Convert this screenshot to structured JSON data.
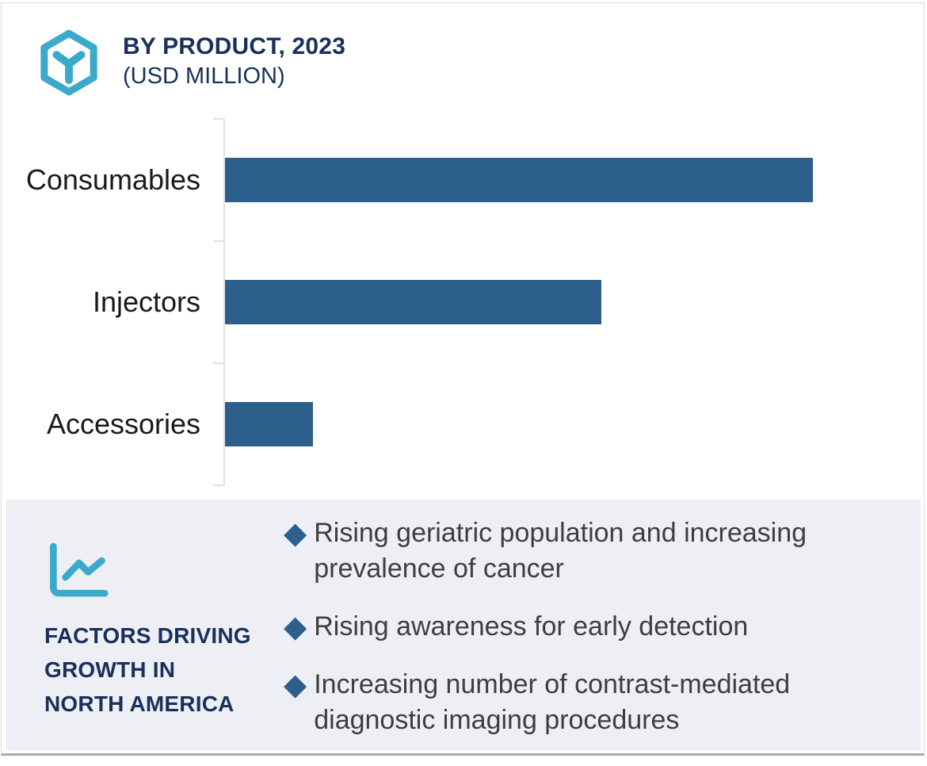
{
  "header": {
    "title_line1": "BY PRODUCT, 2023",
    "title_line2": "(USD MILLION)",
    "logo_icon": "hexagon-cube-logo"
  },
  "chart_data": {
    "type": "bar",
    "orientation": "horizontal",
    "title": "BY PRODUCT, 2023 (USD MILLION)",
    "categories": [
      "Consumables",
      "Injectors",
      "Accessories"
    ],
    "values": [
      100,
      64,
      15
    ],
    "units": "USD Million",
    "value_labels_shown": false,
    "xlabel": "",
    "ylabel": "",
    "grid": false,
    "legend": false,
    "bar_color": "#2d5f8c"
  },
  "panel": {
    "icon": "trend-line-chart-icon",
    "heading_lines": [
      "FACTORS DRIVING",
      "GROWTH IN",
      "NORTH AMERICA"
    ],
    "bullet_glyph": "◆",
    "bullets": [
      "Rising geriatric population and increasing prevalence of cancer",
      "Rising awareness for early detection",
      "Increasing number of contrast-mediated diagnostic imaging procedures"
    ]
  },
  "colors": {
    "bar": "#2d5f8c",
    "accent_teal": "#3ba9c9",
    "navy": "#18305c",
    "panelbg": "#edeff4",
    "bodytext": "#3e3e3e",
    "axis": "#e2e2e5"
  }
}
